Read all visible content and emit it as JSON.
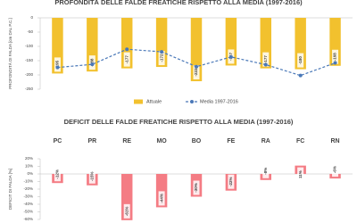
{
  "chart_data": [
    {
      "type": "bar",
      "title": "PROFONDITÀ DELLE FALDE FREATICHE RISPETTO ALLA MEDIA (1997-2016)",
      "y_label": "PROFONDITÀ DI FALDA [cm DAL P.C.]",
      "categories": [
        "PC",
        "PR",
        "RE",
        "MO",
        "BO",
        "FE",
        "RA",
        "FC",
        "RN"
      ],
      "series": [
        {
          "name": "Attuale",
          "type": "bar",
          "color": "#f2c12e",
          "values": [
            -195,
            -188,
            -177,
            -172,
            -222,
            -167,
            -177,
            -180,
            -168
          ]
        },
        {
          "name": "Media 1997-2016",
          "type": "line",
          "color": "#4a78b8",
          "values": [
            -174,
            -163,
            -110,
            -119,
            -171,
            -137,
            -164,
            -202,
            -158
          ]
        }
      ],
      "ylim": [
        -250,
        0
      ],
      "yticks": [
        0,
        -50,
        -100,
        -150,
        -200,
        -250
      ]
    },
    {
      "type": "bar",
      "title": "DEFICIT DELLE FALDE FREATICHE RISPETTO ALLA MEDIA (1997-2016)",
      "y_label": "DEFICIT DI FALDA [%]",
      "categories": [
        "PC",
        "PR",
        "RE",
        "MO",
        "BO",
        "FE",
        "RA",
        "FC",
        "RN"
      ],
      "color": "#f47c84",
      "values": [
        -12,
        -15,
        -61,
        -44,
        -30,
        -22,
        -8,
        11,
        -6
      ],
      "value_labels": [
        "-12%",
        "-15%",
        "-61%",
        "-44%",
        "-30%",
        "-22%",
        "-8%",
        "11%",
        "-6%"
      ],
      "ylim": [
        -60,
        20
      ],
      "yticks": [
        {
          "value": 20,
          "label": "20%"
        },
        {
          "value": 10,
          "label": "10%"
        },
        {
          "value": 0,
          "label": "0%"
        },
        {
          "value": -10,
          "label": "-10%"
        },
        {
          "value": -20,
          "label": "-20%"
        },
        {
          "value": -30,
          "label": "-30%"
        },
        {
          "value": -40,
          "label": "-40%"
        },
        {
          "value": -50,
          "label": "-50%"
        },
        {
          "value": -60,
          "label": "-60%"
        }
      ]
    }
  ]
}
